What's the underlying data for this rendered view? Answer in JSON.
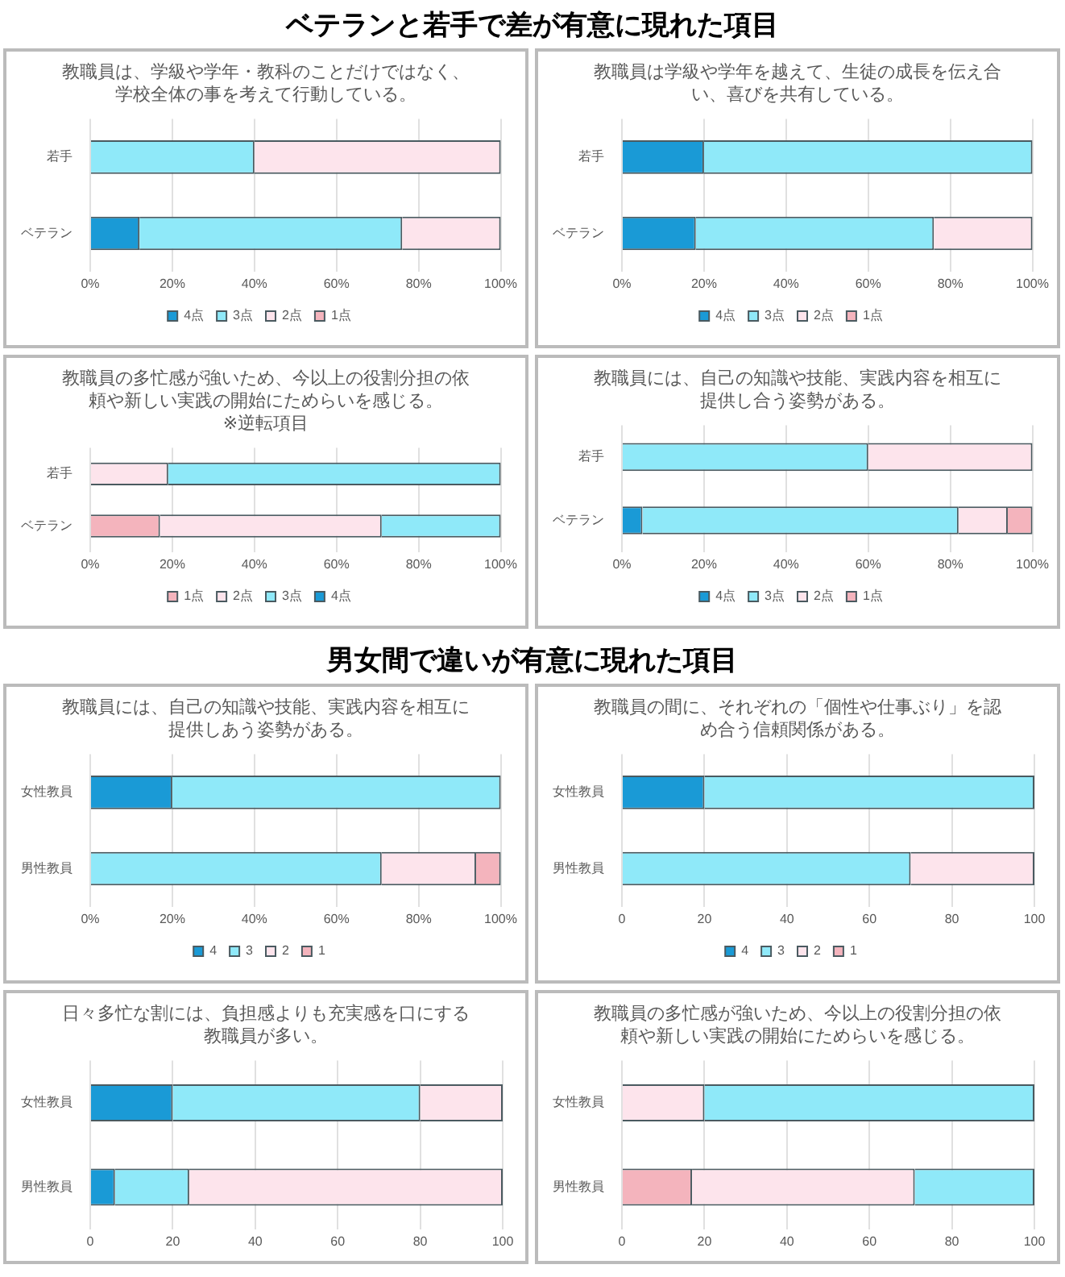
{
  "chart_data": [
    {
      "type": "other",
      "title": "ベテランと若手で差が有意に現れた項目"
    },
    {
      "type": "bar",
      "orientation": "horizontal",
      "stacked": true,
      "title": "教職員は、学級や学年・教科のことだけではなく、学校全体の事を考えて行動している。",
      "categories": [
        "若手",
        "ベテラン"
      ],
      "xlim": [
        0,
        100
      ],
      "xticks": [
        {
          "value": 0,
          "label": "0%"
        },
        {
          "value": 20,
          "label": "20%"
        },
        {
          "value": 40,
          "label": "40%"
        },
        {
          "value": 60,
          "label": "60%"
        },
        {
          "value": 80,
          "label": "80%"
        },
        {
          "value": 100,
          "label": "100%"
        }
      ],
      "grid": "x",
      "legend": "bottom",
      "series": [
        {
          "name": "4点",
          "color": "#1a9ad6",
          "values": [
            0,
            12
          ]
        },
        {
          "name": "3点",
          "color": "#8fe9f9",
          "values": [
            40,
            64
          ]
        },
        {
          "name": "2点",
          "color": "#fde4ec",
          "values": [
            60,
            24
          ]
        },
        {
          "name": "1点",
          "color": "#f4b4bd",
          "values": [
            0,
            0
          ]
        }
      ]
    },
    {
      "type": "bar",
      "orientation": "horizontal",
      "stacked": true,
      "title": "教職員は学級や学年を越えて、生徒の成長を伝え合い、喜びを共有している。",
      "categories": [
        "若手",
        "ベテラン"
      ],
      "xlim": [
        0,
        100
      ],
      "xticks": [
        {
          "value": 0,
          "label": "0%"
        },
        {
          "value": 20,
          "label": "20%"
        },
        {
          "value": 40,
          "label": "40%"
        },
        {
          "value": 60,
          "label": "60%"
        },
        {
          "value": 80,
          "label": "80%"
        },
        {
          "value": 100,
          "label": "100%"
        }
      ],
      "grid": "x",
      "legend": "bottom",
      "series": [
        {
          "name": "4点",
          "color": "#1a9ad6",
          "values": [
            20,
            18
          ]
        },
        {
          "name": "3点",
          "color": "#8fe9f9",
          "values": [
            80,
            58
          ]
        },
        {
          "name": "2点",
          "color": "#fde4ec",
          "values": [
            0,
            24
          ]
        },
        {
          "name": "1点",
          "color": "#f4b4bd",
          "values": [
            0,
            0
          ]
        }
      ]
    },
    {
      "type": "bar",
      "orientation": "horizontal",
      "stacked": true,
      "title": "教職員の多忙感が強いため、今以上の役割分担の依頼や新しい実践の開始にためらいを感じる。\n※逆転項目",
      "categories": [
        "若手",
        "ベテラン"
      ],
      "xlim": [
        0,
        100
      ],
      "xticks": [
        {
          "value": 0,
          "label": "0%"
        },
        {
          "value": 20,
          "label": "20%"
        },
        {
          "value": 40,
          "label": "40%"
        },
        {
          "value": 60,
          "label": "60%"
        },
        {
          "value": 80,
          "label": "80%"
        },
        {
          "value": 100,
          "label": "100%"
        }
      ],
      "grid": "x",
      "legend": "bottom",
      "series": [
        {
          "name": "1点",
          "color": "#f4b4bd",
          "values": [
            0,
            17
          ]
        },
        {
          "name": "2点",
          "color": "#fde4ec",
          "values": [
            19,
            54
          ]
        },
        {
          "name": "3点",
          "color": "#8fe9f9",
          "values": [
            81,
            29
          ]
        },
        {
          "name": "4点",
          "color": "#1a9ad6",
          "values": [
            0,
            0
          ]
        }
      ]
    },
    {
      "type": "bar",
      "orientation": "horizontal",
      "stacked": true,
      "title": "教職員には、自己の知識や技能、実践内容を相互に提供し合う姿勢がある。",
      "categories": [
        "若手",
        "ベテラン"
      ],
      "xlim": [
        0,
        100
      ],
      "xticks": [
        {
          "value": 0,
          "label": "0%"
        },
        {
          "value": 20,
          "label": "20%"
        },
        {
          "value": 40,
          "label": "40%"
        },
        {
          "value": 60,
          "label": "60%"
        },
        {
          "value": 80,
          "label": "80%"
        },
        {
          "value": 100,
          "label": "100%"
        }
      ],
      "grid": "x",
      "legend": "bottom",
      "series": [
        {
          "name": "4点",
          "color": "#1a9ad6",
          "values": [
            0,
            5
          ]
        },
        {
          "name": "3点",
          "color": "#8fe9f9",
          "values": [
            60,
            77
          ]
        },
        {
          "name": "2点",
          "color": "#fde4ec",
          "values": [
            40,
            12
          ]
        },
        {
          "name": "1点",
          "color": "#f4b4bd",
          "values": [
            0,
            6
          ]
        }
      ]
    },
    {
      "type": "other",
      "title": "男女間で違いが有意に現れた項目"
    },
    {
      "type": "bar",
      "orientation": "horizontal",
      "stacked": true,
      "title": "教職員には、自己の知識や技能、実践内容を相互に提供しあう姿勢がある。",
      "categories": [
        "女性教員",
        "男性教員"
      ],
      "xlim": [
        0,
        100
      ],
      "xticks": [
        {
          "value": 0,
          "label": "0%"
        },
        {
          "value": 20,
          "label": "20%"
        },
        {
          "value": 40,
          "label": "40%"
        },
        {
          "value": 60,
          "label": "60%"
        },
        {
          "value": 80,
          "label": "80%"
        },
        {
          "value": 100,
          "label": "100%"
        }
      ],
      "grid": "x",
      "legend": "bottom",
      "series": [
        {
          "name": "4",
          "color": "#1a9ad6",
          "values": [
            20,
            0
          ]
        },
        {
          "name": "3",
          "color": "#8fe9f9",
          "values": [
            80,
            71
          ]
        },
        {
          "name": "2",
          "color": "#fde4ec",
          "values": [
            0,
            23
          ]
        },
        {
          "name": "1",
          "color": "#f4b4bd",
          "values": [
            0,
            6
          ]
        }
      ]
    },
    {
      "type": "bar",
      "orientation": "horizontal",
      "stacked": true,
      "title": "教職員の間に、それぞれの「個性や仕事ぶり」を認め合う信頼関係がある。",
      "categories": [
        "女性教員",
        "男性教員"
      ],
      "xlim": [
        0,
        100
      ],
      "xticks": [
        0,
        20,
        40,
        60,
        80,
        100
      ],
      "grid": "x",
      "legend": "bottom",
      "series": [
        {
          "name": "4",
          "color": "#1a9ad6",
          "values": [
            20,
            0
          ]
        },
        {
          "name": "3",
          "color": "#8fe9f9",
          "values": [
            80,
            70
          ]
        },
        {
          "name": "2",
          "color": "#fde4ec",
          "values": [
            0,
            30
          ]
        },
        {
          "name": "1",
          "color": "#f4b4bd",
          "values": [
            0,
            0
          ]
        }
      ]
    },
    {
      "type": "bar",
      "orientation": "horizontal",
      "stacked": true,
      "title": "日々多忙な割には、負担感よりも充実感を口にする教職員が多い。",
      "categories": [
        "女性教員",
        "男性教員"
      ],
      "xlim": [
        0,
        100
      ],
      "xticks": [
        0,
        20,
        40,
        60,
        80,
        100
      ],
      "grid": "x",
      "series": [
        {
          "color": "#1a9ad6",
          "values": [
            20,
            6
          ]
        },
        {
          "color": "#8fe9f9",
          "values": [
            60,
            18
          ]
        },
        {
          "color": "#fde4ec",
          "values": [
            20,
            76
          ]
        }
      ]
    },
    {
      "type": "bar",
      "orientation": "horizontal",
      "stacked": true,
      "title": "教職員の多忙感が強いため、今以上の役割分担の依頼や新しい実践の開始にためらいを感じる。",
      "categories": [
        "女性教員",
        "男性教員"
      ],
      "xlim": [
        0,
        100
      ],
      "xticks": [
        0,
        20,
        40,
        60,
        80,
        100
      ],
      "grid": "x",
      "series": [
        {
          "color": "#f4b4bd",
          "values": [
            0,
            17
          ]
        },
        {
          "color": "#fde4ec",
          "values": [
            20,
            54
          ]
        },
        {
          "color": "#8fe9f9",
          "values": [
            80,
            29
          ]
        }
      ]
    }
  ]
}
